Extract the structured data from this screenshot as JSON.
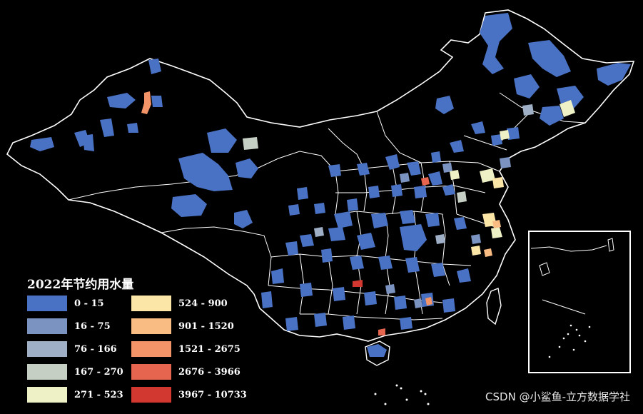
{
  "map": {
    "legend_title": "2022年节约用水量",
    "legend": [
      {
        "label": "0 - 15",
        "color": "#4a72c4"
      },
      {
        "label": "16 - 75",
        "color": "#7a93c0"
      },
      {
        "label": "76 - 166",
        "color": "#9fb0c6"
      },
      {
        "label": "167 - 270",
        "color": "#c5cfc4"
      },
      {
        "label": "271 - 523",
        "color": "#eef0c6"
      },
      {
        "label": "524 - 900",
        "color": "#fbe6a7"
      },
      {
        "label": "901 - 1520",
        "color": "#f9bd84"
      },
      {
        "label": "1521 - 2675",
        "color": "#f39468"
      },
      {
        "label": "2676 - 3966",
        "color": "#e5654f"
      },
      {
        "label": "3967 - 10733",
        "color": "#d33830"
      }
    ],
    "watermark": "CSDN @小鲨鱼-立方数据学社"
  }
}
